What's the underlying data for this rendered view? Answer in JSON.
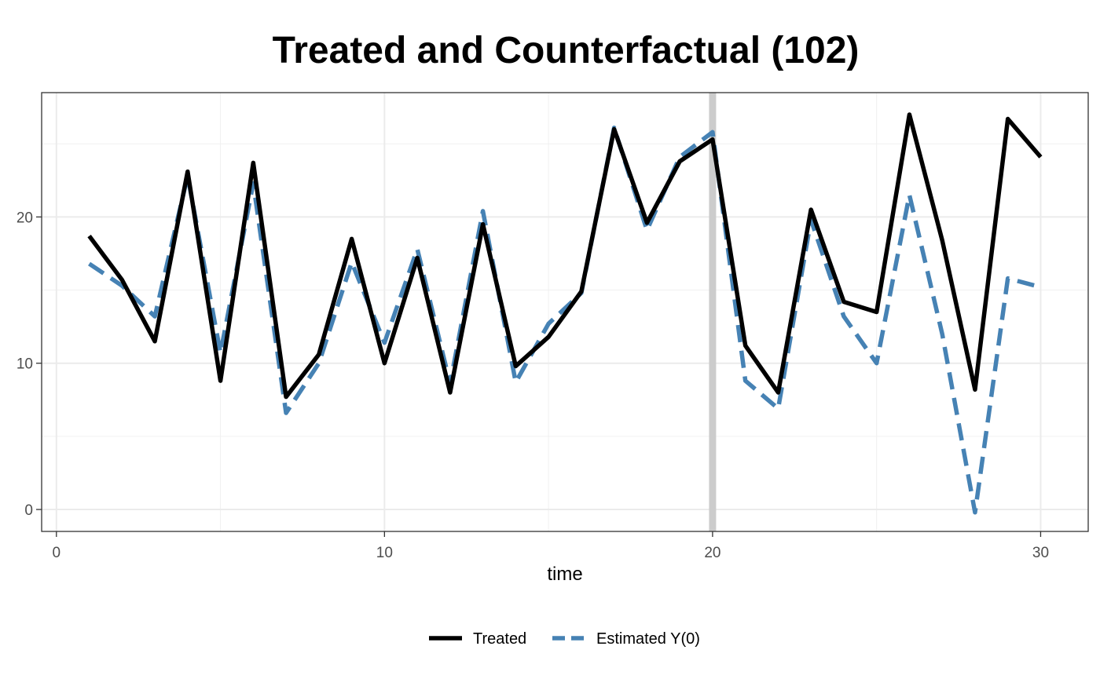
{
  "chart_data": {
    "type": "line",
    "title": "Treated and Counterfactual (102)",
    "xlabel": "time",
    "ylabel": "",
    "xlim": [
      -0.45,
      31.45
    ],
    "ylim": [
      -1.5,
      28.5
    ],
    "x_ticks": [
      0,
      10,
      20,
      30
    ],
    "y_ticks": [
      0,
      10,
      20
    ],
    "x_tick_labels": [
      "0",
      "10",
      "20",
      "30"
    ],
    "y_tick_labels": [
      "0",
      "10",
      "20"
    ],
    "grid": true,
    "legend_position": "bottom",
    "treatment_start": 20,
    "x": [
      1,
      2,
      3,
      4,
      5,
      6,
      7,
      8,
      9,
      10,
      11,
      12,
      13,
      14,
      15,
      16,
      17,
      18,
      19,
      20,
      21,
      22,
      23,
      24,
      25,
      26,
      27,
      28,
      29,
      30
    ],
    "series": [
      {
        "name": "Treated",
        "color": "#000000",
        "style": "solid",
        "values": [
          18.7,
          15.7,
          11.5,
          23.1,
          8.8,
          23.7,
          7.7,
          10.6,
          18.5,
          10.0,
          17.2,
          8.0,
          19.5,
          9.8,
          11.8,
          14.9,
          26.0,
          19.6,
          23.8,
          25.3,
          11.2,
          8.0,
          20.5,
          14.2,
          13.5,
          27.0,
          18.4,
          8.2,
          26.7,
          24.1
        ]
      },
      {
        "name": "Estimated Y(0)",
        "color": "#4682b4",
        "style": "dashed",
        "values": [
          16.8,
          15.3,
          13.2,
          22.8,
          10.7,
          22.3,
          6.6,
          10.0,
          16.9,
          11.4,
          17.8,
          8.6,
          20.4,
          8.7,
          12.7,
          14.8,
          26.1,
          19.1,
          24.1,
          25.8,
          8.8,
          6.9,
          19.8,
          13.2,
          10.0,
          21.5,
          12.0,
          -0.2,
          15.8,
          15.2
        ]
      }
    ]
  }
}
